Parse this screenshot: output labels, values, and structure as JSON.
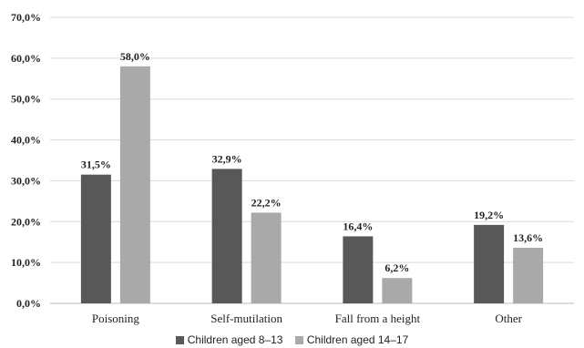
{
  "chart_data": {
    "type": "bar",
    "categories": [
      "Poisoning",
      "Self-mutilation",
      "Fall from a height",
      "Other"
    ],
    "series": [
      {
        "name": "Children aged 8–13",
        "values": [
          31.5,
          32.9,
          16.4,
          19.2
        ],
        "labels": [
          "31,5%",
          "32,9%",
          "16,4%",
          "19,2%"
        ],
        "color": "#585858"
      },
      {
        "name": "Children aged 14–17",
        "values": [
          58.0,
          22.2,
          6.2,
          13.6
        ],
        "labels": [
          "58,0%",
          "22,2%",
          "6,2%",
          "13,6%"
        ],
        "color": "#a9a9a9"
      }
    ],
    "y_ticks": [
      0,
      10,
      20,
      30,
      40,
      50,
      60,
      70
    ],
    "y_tick_labels": [
      "0,0%",
      "10,0%",
      "20,0%",
      "30,0%",
      "40,0%",
      "50,0%",
      "60,0%",
      "70,0%"
    ],
    "ylim": [
      0,
      70
    ],
    "grid": true,
    "legend_position": "bottom"
  }
}
